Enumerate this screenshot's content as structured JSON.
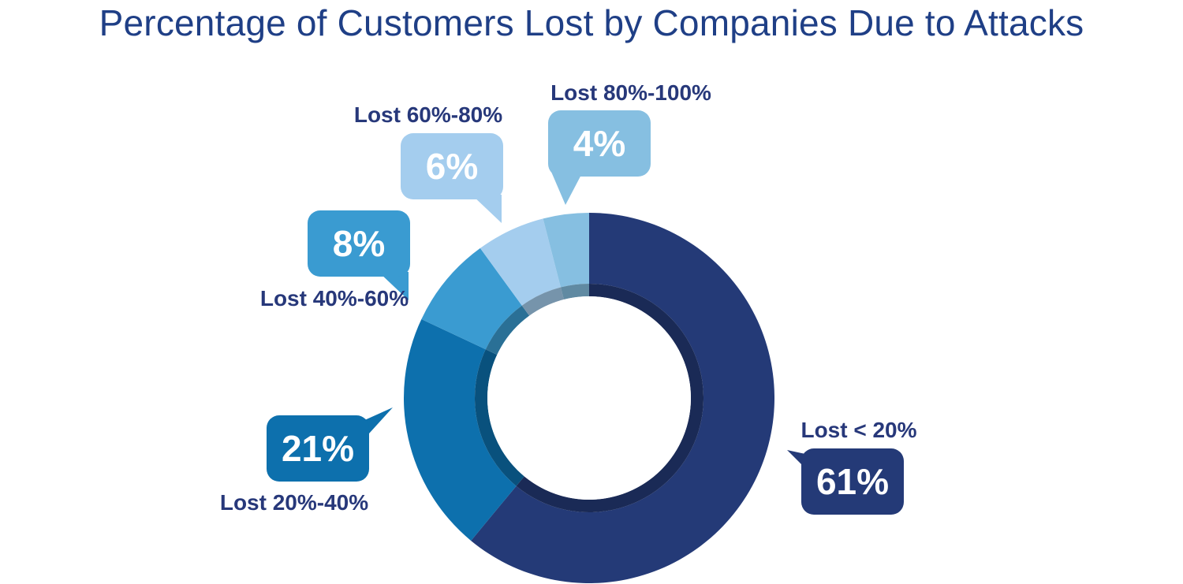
{
  "chart_data": {
    "type": "pie",
    "style": "donut",
    "title": "Percentage of Customers Lost by Companies Due to Attacks",
    "slices": [
      {
        "label": "Lost < 20%",
        "value": 61,
        "value_label": "61%",
        "color": "#243a77"
      },
      {
        "label": "Lost 20%-40%",
        "value": 21,
        "value_label": "21%",
        "color": "#0d70ad"
      },
      {
        "label": "Lost 40%-60%",
        "value": 8,
        "value_label": "8%",
        "color": "#3a9bd1"
      },
      {
        "label": "Lost 60%-80%",
        "value": 6,
        "value_label": "6%",
        "color": "#a4cdee"
      },
      {
        "label": "Lost 80%-100%",
        "value": 4,
        "value_label": "4%",
        "color": "#86bfe1"
      }
    ],
    "start": "12 o'clock",
    "direction": "clockwise",
    "legend": "none"
  }
}
